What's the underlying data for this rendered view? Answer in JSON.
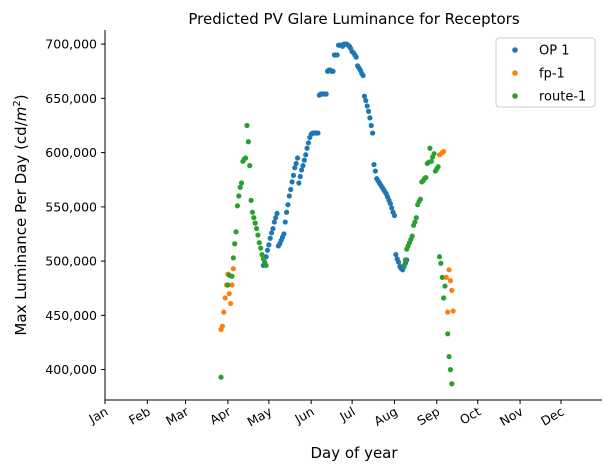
{
  "chart_data": {
    "type": "scatter",
    "title": "Predicted PV Glare Luminance for Receptors",
    "xlabel": "Day of year",
    "ylabel": "Max Luminance Per Day (cd/m²)",
    "ylabel_base": "Max Luminance Per Day (cd/",
    "ylabel_unit": "m",
    "ylabel_exp": "2",
    "ylabel_close": ")",
    "x_ticks": [
      {
        "label": "Jan",
        "day": 1
      },
      {
        "label": "Feb",
        "day": 32
      },
      {
        "label": "Mar",
        "day": 60
      },
      {
        "label": "Apr",
        "day": 91
      },
      {
        "label": "May",
        "day": 121
      },
      {
        "label": "Jun",
        "day": 152
      },
      {
        "label": "Jul",
        "day": 182
      },
      {
        "label": "Aug",
        "day": 213
      },
      {
        "label": "Sep",
        "day": 244
      },
      {
        "label": "Oct",
        "day": 274
      },
      {
        "label": "Nov",
        "day": 305
      },
      {
        "label": "Dec",
        "day": 335
      }
    ],
    "y_ticks": [
      {
        "label": "400,000",
        "value": 400000
      },
      {
        "label": "450,000",
        "value": 450000
      },
      {
        "label": "500,000",
        "value": 500000
      },
      {
        "label": "550,000",
        "value": 550000
      },
      {
        "label": "600,000",
        "value": 600000
      },
      {
        "label": "650,000",
        "value": 650000
      },
      {
        "label": "700,000",
        "value": 700000
      }
    ],
    "xlim": [
      1,
      365
    ],
    "ylim": [
      372000,
      713000
    ],
    "legend_position": "top-right",
    "grid": false,
    "series": [
      {
        "name": "OP 1",
        "color": "#1f77b4",
        "points": [
          [
            117,
            496000
          ],
          [
            118,
            497000
          ],
          [
            119,
            504000
          ],
          [
            120,
            510000
          ],
          [
            121,
            515000
          ],
          [
            122,
            521000
          ],
          [
            123,
            526000
          ],
          [
            124,
            530000
          ],
          [
            125,
            536000
          ],
          [
            126,
            540000
          ],
          [
            127,
            544000
          ],
          [
            128,
            514000
          ],
          [
            129,
            516000
          ],
          [
            130,
            519000
          ],
          [
            131,
            522000
          ],
          [
            132,
            525000
          ],
          [
            133,
            536000
          ],
          [
            134,
            545000
          ],
          [
            135,
            552000
          ],
          [
            136,
            560000
          ],
          [
            137,
            566000
          ],
          [
            138,
            573000
          ],
          [
            139,
            579000
          ],
          [
            140,
            586000
          ],
          [
            141,
            590000
          ],
          [
            142,
            595000
          ],
          [
            143,
            572000
          ],
          [
            144,
            578000
          ],
          [
            145,
            584000
          ],
          [
            146,
            588000
          ],
          [
            147,
            593000
          ],
          [
            148,
            598000
          ],
          [
            149,
            604000
          ],
          [
            150,
            609000
          ],
          [
            151,
            614000
          ],
          [
            152,
            617000
          ],
          [
            153,
            618000
          ],
          [
            154,
            618000
          ],
          [
            155,
            618000
          ],
          [
            156,
            618000
          ],
          [
            157,
            618000
          ],
          [
            158,
            653000
          ],
          [
            159,
            654000
          ],
          [
            160,
            654000
          ],
          [
            161,
            654000
          ],
          [
            162,
            654000
          ],
          [
            163,
            654000
          ],
          [
            164,
            675000
          ],
          [
            165,
            676000
          ],
          [
            166,
            676000
          ],
          [
            167,
            675000
          ],
          [
            168,
            675000
          ],
          [
            169,
            690000
          ],
          [
            170,
            690000
          ],
          [
            171,
            690000
          ],
          [
            172,
            699000
          ],
          [
            173,
            699000
          ],
          [
            174,
            699000
          ],
          [
            175,
            698000
          ],
          [
            176,
            700000
          ],
          [
            177,
            700000
          ],
          [
            178,
            700000
          ],
          [
            179,
            699000
          ],
          [
            180,
            698000
          ],
          [
            181,
            696000
          ],
          [
            182,
            693000
          ],
          [
            183,
            692000
          ],
          [
            184,
            690000
          ],
          [
            185,
            688000
          ],
          [
            186,
            680000
          ],
          [
            187,
            678000
          ],
          [
            188,
            676000
          ],
          [
            189,
            673000
          ],
          [
            190,
            671000
          ],
          [
            191,
            652000
          ],
          [
            192,
            648000
          ],
          [
            193,
            643000
          ],
          [
            194,
            638000
          ],
          [
            195,
            632000
          ],
          [
            196,
            625000
          ],
          [
            197,
            618000
          ],
          [
            198,
            589000
          ],
          [
            199,
            583000
          ],
          [
            200,
            576000
          ],
          [
            201,
            574000
          ],
          [
            202,
            572000
          ],
          [
            203,
            570000
          ],
          [
            204,
            568000
          ],
          [
            205,
            566000
          ],
          [
            206,
            564000
          ],
          [
            207,
            562000
          ],
          [
            208,
            559000
          ],
          [
            209,
            556000
          ],
          [
            210,
            553000
          ],
          [
            211,
            549000
          ],
          [
            212,
            545000
          ],
          [
            213,
            542000
          ],
          [
            214,
            506000
          ],
          [
            215,
            502000
          ],
          [
            216,
            499000
          ],
          [
            217,
            495000
          ],
          [
            218,
            493000
          ],
          [
            219,
            492000
          ],
          [
            220,
            495000
          ],
          [
            221,
            498000
          ],
          [
            222,
            501000
          ]
        ]
      },
      {
        "name": "fp-1",
        "color": "#ff7f0e",
        "points": [
          [
            86,
            437000
          ],
          [
            87,
            440000
          ],
          [
            88,
            453000
          ],
          [
            89,
            466000
          ],
          [
            90,
            478000
          ],
          [
            91,
            488000
          ],
          [
            92,
            470000
          ],
          [
            93,
            461000
          ],
          [
            94,
            478000
          ],
          [
            95,
            493000
          ],
          [
            246,
            598000
          ],
          [
            248,
            600000
          ],
          [
            249,
            601000
          ],
          [
            251,
            485000
          ],
          [
            252,
            453000
          ],
          [
            253,
            492000
          ],
          [
            254,
            482000
          ],
          [
            255,
            473000
          ],
          [
            256,
            454000
          ]
        ]
      },
      {
        "name": "route-1",
        "color": "#2ca02c",
        "points": [
          [
            86,
            393000
          ],
          [
            91,
            478000
          ],
          [
            92,
            487000
          ],
          [
            94,
            486000
          ],
          [
            95,
            503000
          ],
          [
            96,
            516000
          ],
          [
            97,
            527000
          ],
          [
            98,
            551000
          ],
          [
            99,
            560000
          ],
          [
            100,
            568000
          ],
          [
            101,
            572000
          ],
          [
            102,
            592000
          ],
          [
            103,
            594000
          ],
          [
            104,
            595000
          ],
          [
            105,
            625000
          ],
          [
            106,
            610000
          ],
          [
            107,
            588000
          ],
          [
            108,
            556000
          ],
          [
            109,
            545000
          ],
          [
            110,
            540000
          ],
          [
            111,
            535000
          ],
          [
            112,
            530000
          ],
          [
            113,
            524000
          ],
          [
            114,
            517000
          ],
          [
            115,
            512000
          ],
          [
            116,
            506000
          ],
          [
            117,
            502000
          ],
          [
            118,
            499000
          ],
          [
            119,
            496000
          ],
          [
            220,
            496000
          ],
          [
            221,
            501000
          ],
          [
            222,
            511000
          ],
          [
            223,
            514000
          ],
          [
            224,
            517000
          ],
          [
            225,
            520000
          ],
          [
            226,
            523000
          ],
          [
            227,
            533000
          ],
          [
            228,
            536000
          ],
          [
            229,
            540000
          ],
          [
            230,
            552000
          ],
          [
            231,
            555000
          ],
          [
            232,
            557000
          ],
          [
            233,
            573000
          ],
          [
            234,
            574000
          ],
          [
            235,
            576000
          ],
          [
            236,
            577000
          ],
          [
            237,
            590000
          ],
          [
            238,
            591000
          ],
          [
            239,
            604000
          ],
          [
            240,
            592000
          ],
          [
            241,
            596000
          ],
          [
            242,
            599000
          ],
          [
            243,
            583000
          ],
          [
            244,
            585000
          ],
          [
            245,
            587000
          ],
          [
            246,
            504000
          ],
          [
            247,
            498000
          ],
          [
            248,
            485000
          ],
          [
            249,
            466000
          ],
          [
            250,
            477000
          ],
          [
            252,
            433000
          ],
          [
            253,
            412000
          ],
          [
            254,
            400000
          ],
          [
            255,
            387000
          ]
        ]
      }
    ]
  }
}
